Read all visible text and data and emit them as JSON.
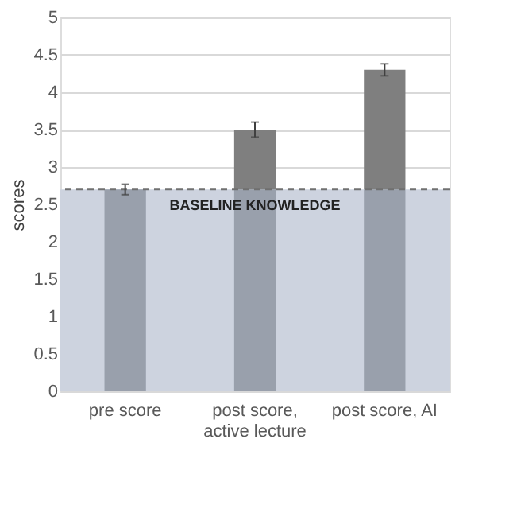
{
  "chart_data": {
    "type": "bar",
    "stacked": true,
    "ylabel": "scores",
    "categories": [
      "pre score",
      "post score,\nactive lecture",
      "post score, AI"
    ],
    "series": [
      {
        "color": "#99a0ac",
        "values": [
          2.7,
          2.7,
          2.7
        ],
        "errors": [
          0.07,
          null,
          null
        ]
      },
      {
        "color": "#7f7f7f",
        "values": [
          null,
          0.8,
          1.6
        ],
        "errors": [
          null,
          0.1,
          0.08
        ]
      }
    ],
    "ylim": [
      0,
      5
    ],
    "yticks": [
      0,
      0.5,
      1,
      1.5,
      2,
      2.5,
      3,
      3.5,
      4,
      4.5,
      5
    ],
    "bands": [
      {
        "axis": "y",
        "from": 0,
        "to": 2.7,
        "label": "BASELINE KNOWLEDGE",
        "color": "#cdd3df"
      }
    ],
    "ref_lines": [
      {
        "axis": "y",
        "value": 2.7,
        "line_style": "dashed",
        "color": "#707070"
      }
    ],
    "grid": "y",
    "legend": false
  }
}
